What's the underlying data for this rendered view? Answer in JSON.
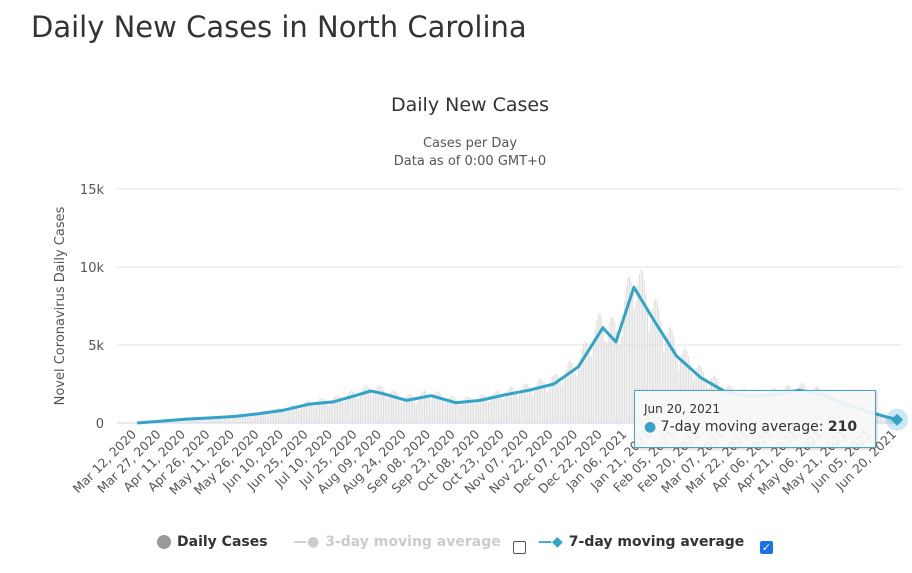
{
  "page_title": "Daily New Cases in North Carolina",
  "chart_data": {
    "type": "line",
    "title": "Daily New Cases",
    "subtitle_lines": [
      "Cases per Day",
      "Data as of 0:00 GMT+0"
    ],
    "ylabel": "Novel Coronavirus Daily Cases",
    "ylim": [
      0,
      15000
    ],
    "y_ticks": [
      "0",
      "5k",
      "10k",
      "15k"
    ],
    "y_tick_values": [
      0,
      5000,
      10000,
      15000
    ],
    "grid": true,
    "x_ticks": [
      "Mar 12, 2020",
      "Mar 27, 2020",
      "Apr 11, 2020",
      "Apr 26, 2020",
      "May 11, 2020",
      "May 26, 2020",
      "Jun 10, 2020",
      "Jun 25, 2020",
      "Jul 10, 2020",
      "Jul 25, 2020",
      "Aug 09, 2020",
      "Aug 24, 2020",
      "Sep 08, 2020",
      "Sep 23, 2020",
      "Oct 08, 2020",
      "Oct 23, 2020",
      "Nov 07, 2020",
      "Nov 22, 2020",
      "Dec 07, 2020",
      "Dec 22, 2020",
      "Jan 06, 2021",
      "Jan 21, 2021",
      "Feb 05, 2021",
      "Feb 20, 2021",
      "Mar 07, 2021",
      "Mar 22, 2021",
      "Apr 06, 2021",
      "Apr 21, 2021",
      "May 06, 2021",
      "May 21, 2021",
      "Jun 05, 2021",
      "Jun 20, 2021"
    ],
    "series": [
      {
        "name": "Daily Cases",
        "color": "#dddddd",
        "type": "bar"
      },
      {
        "name": "3-day moving average",
        "color": "#cccccc",
        "enabled": false
      },
      {
        "name": "7-day moving average",
        "color": "#33a3c8",
        "enabled": true,
        "x": [
          "Mar 12, 2020",
          "Mar 27, 2020",
          "Apr 11, 2020",
          "Apr 26, 2020",
          "May 11, 2020",
          "May 26, 2020",
          "Jun 10, 2020",
          "Jun 25, 2020",
          "Jul 10, 2020",
          "Jul 25, 2020",
          "Aug 02, 2020",
          "Aug 09, 2020",
          "Aug 24, 2020",
          "Sep 08, 2020",
          "Sep 23, 2020",
          "Oct 08, 2020",
          "Oct 23, 2020",
          "Nov 07, 2020",
          "Nov 22, 2020",
          "Dec 07, 2020",
          "Dec 22, 2020",
          "Dec 30, 2020",
          "Jan 10, 2021",
          "Jan 21, 2021",
          "Feb 05, 2021",
          "Feb 20, 2021",
          "Mar 07, 2021",
          "Mar 22, 2021",
          "Apr 06, 2021",
          "Apr 21, 2021",
          "May 06, 2021",
          "May 21, 2021",
          "Jun 05, 2021",
          "Jun 20, 2021"
        ],
        "values": [
          0,
          120,
          250,
          330,
          420,
          600,
          830,
          1200,
          1350,
          1800,
          2050,
          1900,
          1450,
          1750,
          1300,
          1450,
          1800,
          2100,
          2500,
          3600,
          6100,
          5200,
          8700,
          6800,
          4300,
          2900,
          2000,
          1700,
          1800,
          2100,
          1800,
          1150,
          650,
          210
        ]
      }
    ],
    "tooltip": {
      "date": "Jun 20, 2021",
      "series": "7-day moving average",
      "value": "210"
    },
    "legend_placement": "bottom"
  },
  "legend": {
    "daily": "Daily Cases",
    "three": "3-day moving average",
    "seven": "7-day moving average",
    "three_checked": false,
    "seven_checked": true
  }
}
